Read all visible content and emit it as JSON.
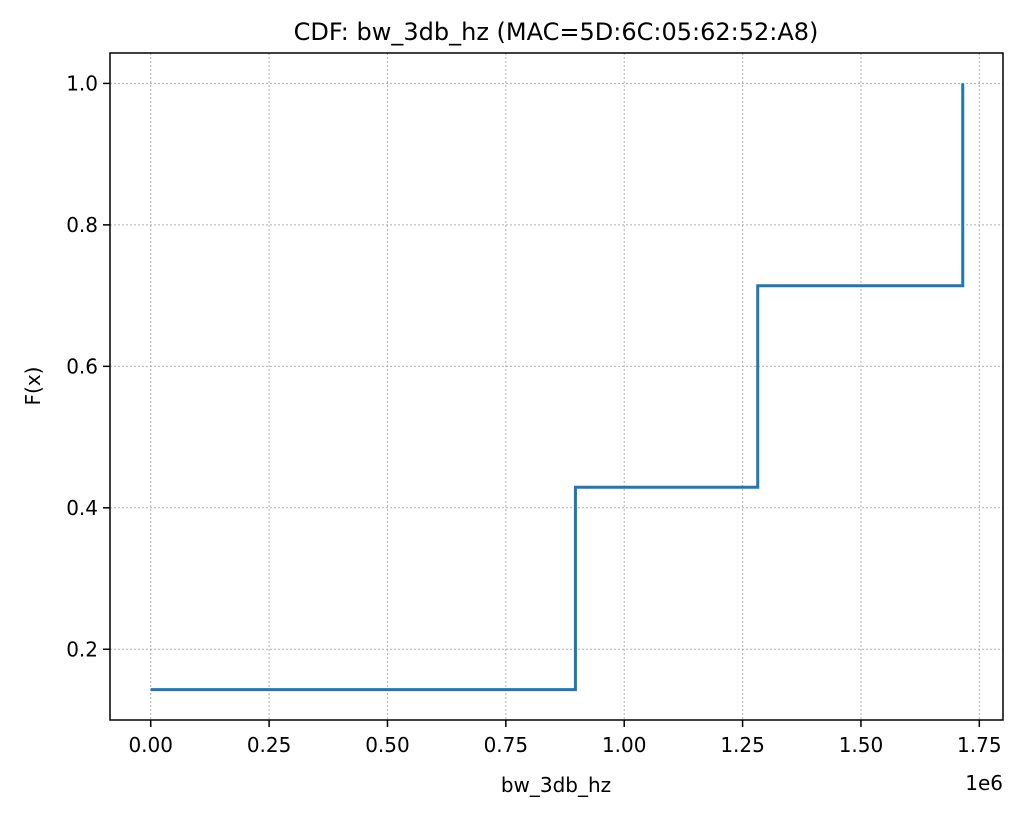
{
  "chart_data": {
    "type": "line",
    "drawstyle": "steps-post",
    "title": "CDF: bw_3db_hz (MAC=5D:6C:05:62:52:A8)",
    "xlabel": "bw_3db_hz",
    "ylabel": "F(x)",
    "x_offset_label": "1e6",
    "xlim": [
      -0.086,
      1.8
    ],
    "ylim": [
      0.1,
      1.043
    ],
    "x_ticks": [
      0.0,
      0.25,
      0.5,
      0.75,
      1.0,
      1.25,
      1.5,
      1.75
    ],
    "x_tick_labels": [
      "0.00",
      "0.25",
      "0.50",
      "0.75",
      "1.00",
      "1.25",
      "1.50",
      "1.75"
    ],
    "y_ticks": [
      0.2,
      0.4,
      0.6,
      0.8,
      1.0
    ],
    "y_tick_labels": [
      "0.2",
      "0.4",
      "0.6",
      "0.8",
      "1.0"
    ],
    "grid": true,
    "series": [
      {
        "color": "#1f77b4",
        "x": [
          0.0,
          0.897,
          1.282,
          1.715
        ],
        "y": [
          0.143,
          0.429,
          0.714,
          1.0
        ]
      }
    ]
  }
}
